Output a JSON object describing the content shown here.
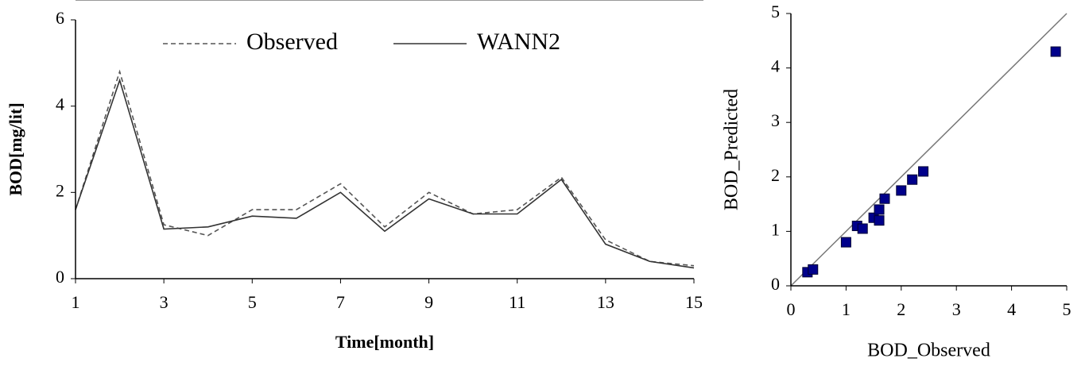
{
  "chart_data": [
    {
      "type": "line",
      "xlabel": "Time[month]",
      "ylabel": "BOD[mg/lit]",
      "x": [
        1,
        2,
        3,
        4,
        5,
        6,
        7,
        8,
        9,
        10,
        11,
        12,
        13,
        14,
        15
      ],
      "series": [
        {
          "name": "Observed",
          "color": "#555555",
          "line_style": "dashed",
          "values": [
            1.6,
            4.8,
            1.25,
            1.0,
            1.6,
            1.6,
            2.2,
            1.2,
            2.0,
            1.5,
            1.6,
            2.35,
            0.9,
            0.4,
            0.3
          ]
        },
        {
          "name": "WANN2",
          "color": "#333333",
          "line_style": "solid",
          "values": [
            1.6,
            4.6,
            1.15,
            1.2,
            1.45,
            1.4,
            2.0,
            1.1,
            1.85,
            1.5,
            1.5,
            2.3,
            0.8,
            0.4,
            0.25
          ]
        }
      ],
      "xlim": [
        1,
        15
      ],
      "ylim": [
        0,
        6
      ],
      "xticks": [
        1,
        3,
        5,
        7,
        9,
        11,
        13,
        15
      ],
      "yticks": [
        0,
        2,
        4,
        6
      ],
      "legend": "top"
    },
    {
      "type": "scatter",
      "xlabel": "BOD_Observed",
      "ylabel": "BOD_Predicted",
      "x": [
        0.3,
        0.4,
        1.0,
        1.2,
        1.3,
        1.5,
        1.6,
        1.6,
        1.7,
        2.0,
        2.2,
        2.4,
        4.8
      ],
      "values": [
        0.25,
        0.3,
        0.8,
        1.1,
        1.05,
        1.25,
        1.2,
        1.4,
        1.6,
        1.75,
        1.95,
        2.1,
        4.3
      ],
      "color": "#00008b",
      "diagonal": true,
      "xlim": [
        0,
        5
      ],
      "ylim": [
        0,
        5
      ],
      "xticks": [
        0,
        1,
        2,
        3,
        4,
        5
      ],
      "yticks": [
        0,
        1,
        2,
        3,
        4,
        5
      ]
    }
  ]
}
